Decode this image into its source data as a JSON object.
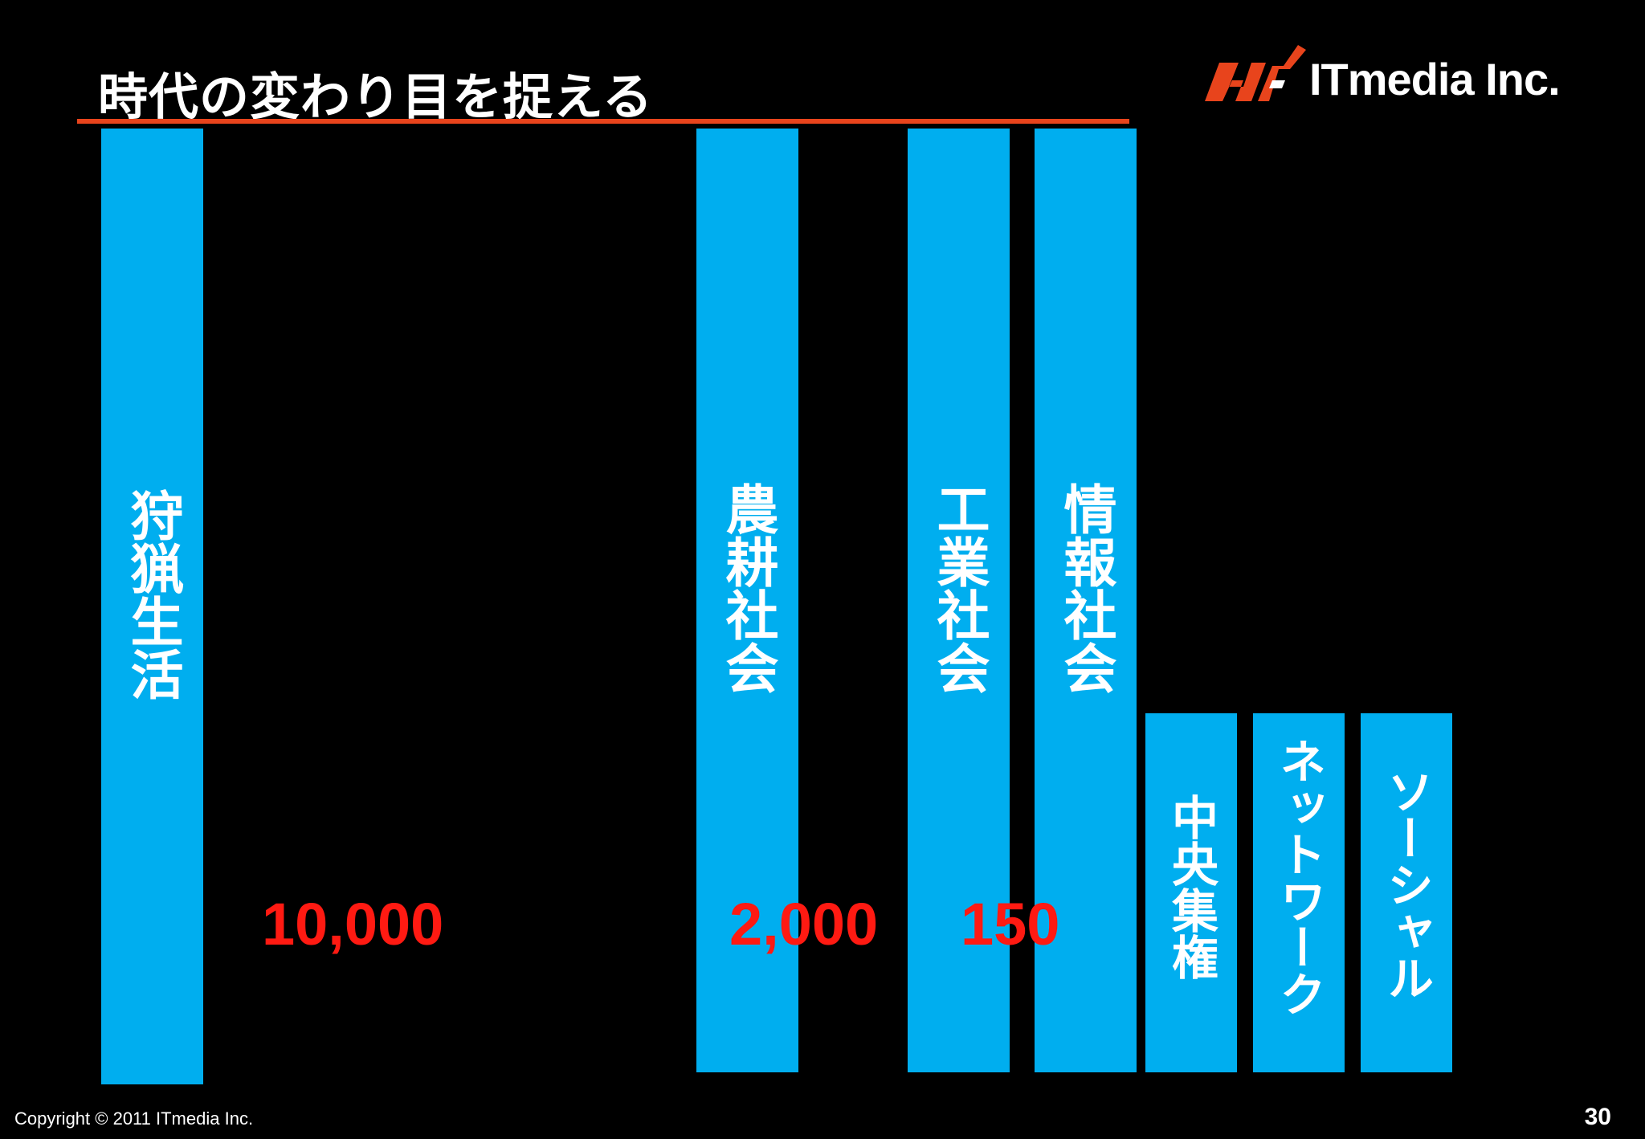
{
  "slide": {
    "title": "時代の変わり目を捉える",
    "logo_text": "ITmedia Inc.",
    "footer_copyright": "Copyright © 2011 ITmedia Inc.",
    "page_number": "30"
  },
  "colors": {
    "background": "#000000",
    "bar": "#00aeef",
    "accent_line": "#e8441c",
    "number": "#ff1a12",
    "logo_mark": "#e8441c"
  },
  "bars": {
    "hunting": "狩猟生活",
    "agriculture": "農耕社会",
    "industry": "工業社会",
    "information": "情報社会",
    "centralized": "中央集権",
    "network": "ネットワーク",
    "social": "ソーシャル"
  },
  "numbers": {
    "hunting_years": "10,000",
    "agriculture_years": "2,000",
    "industry_years": "150"
  },
  "icons": {
    "logo_mark": "itmedia-logo-icon"
  }
}
